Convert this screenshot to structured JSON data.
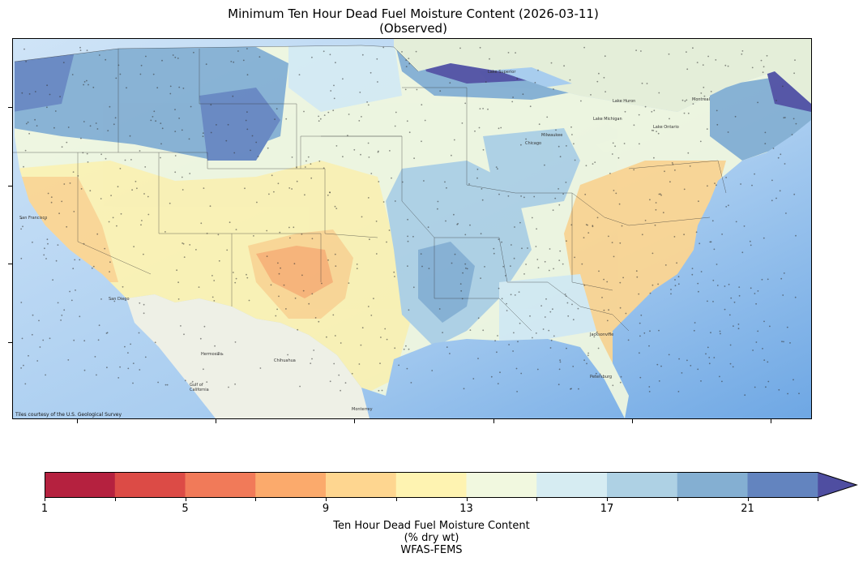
{
  "figure": {
    "title_line1": "Minimum Ten Hour Dead Fuel Moisture Content (2026-03-11)",
    "title_line2": "(Observed)"
  },
  "map": {
    "attribution": "Tiles courtesy of the U.S. Geological Survey",
    "background_colors": {
      "ocean": "#c9dff4",
      "deep_ocean": "#7fb3e8",
      "land_base": "#eef0e4"
    }
  },
  "colorbar": {
    "tick_labels": [
      "1",
      "5",
      "9",
      "13",
      "17",
      "21"
    ],
    "label_line1": "Ten Hour Dead Fuel Moisture Content",
    "label_line2": "(% dry wt)",
    "label_line3": "WFAS-FEMS",
    "extend": "max",
    "bins": [
      {
        "range": "1-3",
        "color": "#b5213f"
      },
      {
        "range": "3-5",
        "color": "#dc4b46"
      },
      {
        "range": "5-7",
        "color": "#f17a59"
      },
      {
        "range": "7-9",
        "color": "#fbaa6c"
      },
      {
        "range": "9-11",
        "color": "#fed690"
      },
      {
        "range": "11-13",
        "color": "#fef3b1"
      },
      {
        "range": "13-15",
        "color": "#f1f8df"
      },
      {
        "range": "15-17",
        "color": "#d6ecf2"
      },
      {
        "range": "17-19",
        "color": "#aed1e4"
      },
      {
        "range": "19-21",
        "color": "#84afd2"
      },
      {
        "range": "21-23",
        "color": "#6384bf"
      },
      {
        "range": ">23",
        "color": "#4f4ea1"
      }
    ]
  }
}
